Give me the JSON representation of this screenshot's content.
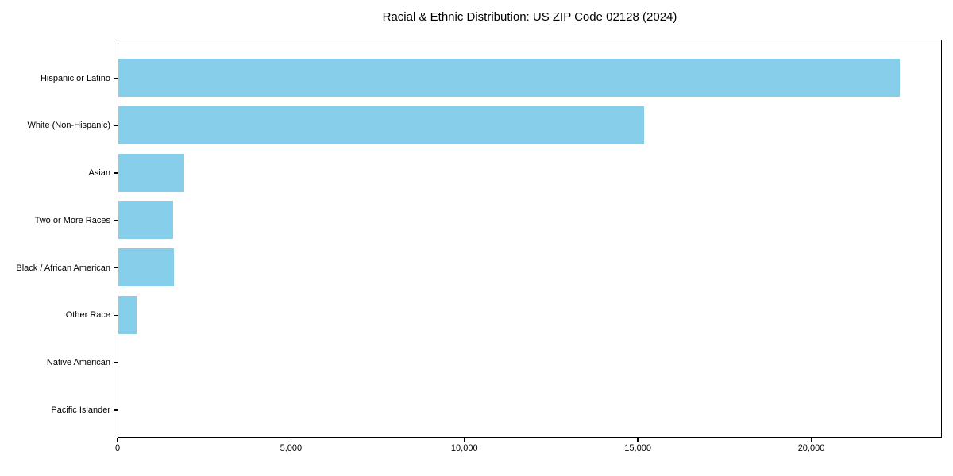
{
  "chart_data": {
    "type": "bar",
    "orientation": "horizontal",
    "title": "Racial & Ethnic Distribution: US ZIP Code 02128 (2024)",
    "categories": [
      "Hispanic or Latino",
      "White (Non-Hispanic)",
      "Asian",
      "Two or More Races",
      "Black / African American",
      "Other Race",
      "Native American",
      "Pacific Islander"
    ],
    "values": [
      22600,
      15200,
      1900,
      1590,
      1600,
      530,
      0,
      0
    ],
    "xlabel": "",
    "ylabel": "",
    "xlim": [
      0,
      23766
    ],
    "x_ticks": [
      0,
      5000,
      10000,
      15000,
      20000
    ],
    "x_tick_labels": [
      "0",
      "5,000",
      "10,000",
      "15,000",
      "20,000"
    ],
    "bar_color": "#87CEEB",
    "axis_color": "#000000",
    "text_color": "#000000",
    "grid": false,
    "legend": false
  }
}
